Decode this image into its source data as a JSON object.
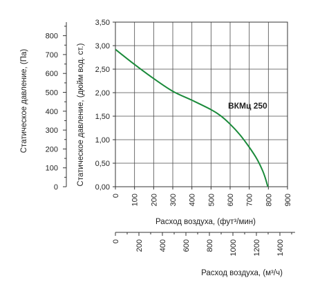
{
  "chart_data": {
    "type": "line",
    "series": [
      {
        "name": "ВКМц 250",
        "color": "#1a8a3a",
        "x": [
          0,
          100,
          200,
          300,
          400,
          500,
          550,
          600,
          650,
          700,
          740,
          770,
          785,
          795,
          798
        ],
        "y": [
          2.92,
          2.6,
          2.3,
          2.03,
          1.84,
          1.64,
          1.51,
          1.33,
          1.11,
          0.84,
          0.59,
          0.34,
          0.17,
          0.03,
          0.0
        ]
      }
    ],
    "x_axis": {
      "label": "Расход воздуха, (фут³/мин)",
      "range": [
        0,
        900
      ],
      "ticks": [
        "0",
        "100",
        "200",
        "300",
        "400",
        "500",
        "600",
        "700",
        "800",
        "900"
      ]
    },
    "y_axis": {
      "label": "Статическое давление, (дюйм вод. ст.)",
      "range": [
        0,
        3.5
      ],
      "ticks": [
        "0,00",
        "0,50",
        "1,00",
        "1,50",
        "2,00",
        "2,50",
        "3,00",
        "3,50"
      ]
    },
    "y2_axis": {
      "label": "Статическое давление, (Па)",
      "range": [
        0,
        871.8
      ],
      "ticks": [
        "0",
        "100",
        "200",
        "300",
        "400",
        "500",
        "600",
        "700",
        "800"
      ]
    },
    "x2_axis": {
      "label": "Расход воздуха, (м³/ч)",
      "range": [
        0,
        1529
      ],
      "ticks": [
        "0",
        "200",
        "400",
        "600",
        "800",
        "1000",
        "1200",
        "1400"
      ]
    },
    "grid": true
  }
}
